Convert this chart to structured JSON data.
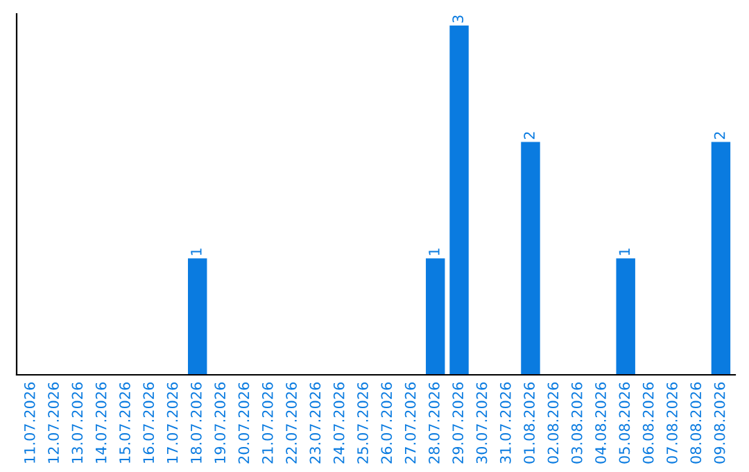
{
  "chart_data": {
    "type": "bar",
    "categories": [
      "11.07.2026",
      "12.07.2026",
      "13.07.2026",
      "14.07.2026",
      "15.07.2026",
      "16.07.2026",
      "17.07.2026",
      "18.07.2026",
      "19.07.2026",
      "20.07.2026",
      "21.07.2026",
      "22.07.2026",
      "23.07.2026",
      "24.07.2026",
      "25.07.2026",
      "26.07.2026",
      "27.07.2026",
      "28.07.2026",
      "29.07.2026",
      "30.07.2026",
      "31.07.2026",
      "01.08.2026",
      "02.08.2026",
      "03.08.2026",
      "04.08.2026",
      "05.08.2026",
      "06.08.2026",
      "07.08.2026",
      "08.08.2026",
      "09.08.2026"
    ],
    "values": [
      0,
      0,
      0,
      0,
      0,
      0,
      0,
      1,
      0,
      0,
      0,
      0,
      0,
      0,
      0,
      0,
      0,
      1,
      3,
      0,
      0,
      2,
      0,
      0,
      0,
      1,
      0,
      0,
      0,
      2
    ],
    "value_labels": [
      null,
      null,
      null,
      null,
      null,
      null,
      null,
      "1",
      null,
      null,
      null,
      null,
      null,
      null,
      null,
      null,
      null,
      "1",
      "3",
      null,
      null,
      "2",
      null,
      null,
      null,
      "1",
      null,
      null,
      null,
      "2"
    ],
    "color": "#0a7be0",
    "ylim": [
      0,
      3.1
    ],
    "tick_labels": "x",
    "grid": false
  }
}
